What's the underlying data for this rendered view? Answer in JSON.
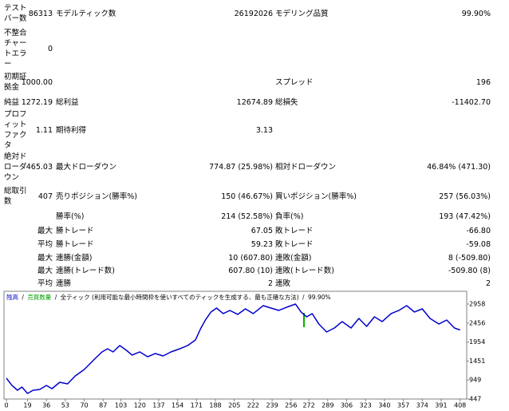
{
  "report": {
    "rows": [
      [
        "テストバー数",
        "86313",
        "モデルティック数",
        "26192026",
        "モデリング品質",
        "99.90%"
      ],
      [
        "不整合チャートエラー",
        "0",
        null,
        null,
        null,
        null
      ],
      [
        "初期証拠金",
        "1000.00",
        null,
        null,
        "スプレッド",
        "196"
      ],
      [
        "純益",
        "1272.19",
        "総利益",
        "12674.89",
        "総損失",
        "-11402.70"
      ],
      [
        "プロフィットファクタ",
        "1.11",
        "期待利得",
        "3.13",
        null,
        null
      ],
      [
        "絶対ドローダウン",
        "465.03",
        "最大ドローダウン",
        "774.87 (25.98%)",
        "相対ドローダウン",
        "46.84% (471.30)"
      ],
      [
        "総取引数",
        "407",
        "売りポジション(勝率%)",
        "150 (46.67%)",
        "買いポジション(勝率%)",
        "257 (56.03%)"
      ],
      [
        null,
        null,
        "勝率(%)",
        "214 (52.58%)",
        "負率(%)",
        "193 (47.42%)"
      ],
      [
        null,
        "最大",
        "勝トレード",
        "67.05",
        "敗トレード",
        "-66.80"
      ],
      [
        null,
        "平均",
        "勝トレード",
        "59.23",
        "敗トレード",
        "-59.08"
      ],
      [
        null,
        "最大",
        "連勝(金額)",
        "10 (607.80)",
        "連敗(金額)",
        "8 (-509.80)"
      ],
      [
        null,
        "最大",
        "連勝(トレード数)",
        "607.80 (10)",
        "連敗(トレード数)",
        "-509.80 (8)"
      ],
      [
        null,
        "平均",
        "連勝",
        "2",
        "連敗",
        "2"
      ]
    ]
  },
  "chart_data": {
    "type": "line",
    "legend": [
      {
        "name": "残高",
        "color": "#0000cc"
      },
      {
        "name": "売買数量",
        "color": "#00a000"
      }
    ],
    "separator": "/",
    "subtitle": "全ティック (利用可能な最小時間枠を使いすべてのティックを生成する、最も正確な方法)",
    "quality": "99.90%",
    "x": [
      0,
      5,
      10,
      14,
      19,
      24,
      30,
      36,
      41,
      48,
      55,
      62,
      70,
      75,
      80,
      86,
      91,
      96,
      102,
      108,
      113,
      120,
      127,
      134,
      141,
      148,
      156,
      163,
      170,
      175,
      179,
      184,
      189,
      195,
      201,
      208,
      215,
      222,
      231,
      238,
      245,
      252,
      260,
      265,
      270,
      275,
      281,
      288,
      295,
      302,
      310,
      317,
      324,
      331,
      338,
      346,
      353,
      360,
      367,
      374,
      381,
      389,
      396,
      403,
      408
    ],
    "series": [
      {
        "name": "残高",
        "color": "#0000cc",
        "values": [
          1000,
          806,
          679,
          764,
          595,
          679,
          700,
          806,
          721,
          890,
          848,
          1059,
          1228,
          1375,
          1523,
          1692,
          1776,
          1692,
          1861,
          1734,
          1608,
          1692,
          1565,
          1650,
          1586,
          1692,
          1776,
          1861,
          2008,
          2325,
          2536,
          2747,
          2852,
          2705,
          2789,
          2684,
          2831,
          2705,
          2916,
          2852,
          2789,
          2873,
          2958,
          2747,
          2620,
          2705,
          2431,
          2219,
          2325,
          2494,
          2325,
          2578,
          2367,
          2620,
          2494,
          2705,
          2789,
          2916,
          2747,
          2831,
          2578,
          2431,
          2536,
          2325,
          2272
        ]
      }
    ],
    "xlim": [
      0,
      414
    ],
    "ylim": [
      447,
      3253
    ],
    "xticks": [
      0,
      19,
      36,
      53,
      70,
      87,
      103,
      120,
      137,
      154,
      171,
      188,
      205,
      222,
      239,
      256,
      272,
      289,
      306,
      323,
      340,
      357,
      374,
      391,
      408
    ],
    "yticks": [
      447,
      949,
      1451,
      1954,
      2456,
      2958
    ],
    "grid": false
  }
}
